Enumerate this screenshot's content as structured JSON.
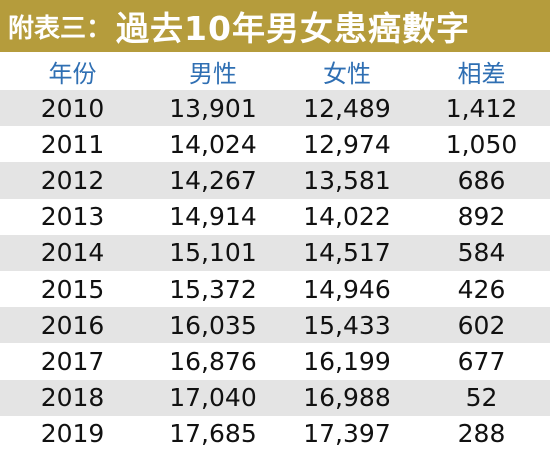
{
  "header": {
    "label": "附表三：",
    "title": "過去10年男女患癌數字"
  },
  "table": {
    "columns": [
      "年份",
      "男性",
      "女性",
      "相差"
    ],
    "rows": [
      [
        "2010",
        "13,901",
        "12,489",
        "1,412"
      ],
      [
        "2011",
        "14,024",
        "12,974",
        "1,050"
      ],
      [
        "2012",
        "14,267",
        "13,581",
        "686"
      ],
      [
        "2013",
        "14,914",
        "14,022",
        "892"
      ],
      [
        "2014",
        "15,101",
        "14,517",
        "584"
      ],
      [
        "2015",
        "15,372",
        "14,946",
        "426"
      ],
      [
        "2016",
        "16,035",
        "15,433",
        "602"
      ],
      [
        "2017",
        "16,876",
        "16,199",
        "677"
      ],
      [
        "2018",
        "17,040",
        "16,988",
        "52"
      ],
      [
        "2019",
        "17,685",
        "17,397",
        "288"
      ]
    ]
  }
}
